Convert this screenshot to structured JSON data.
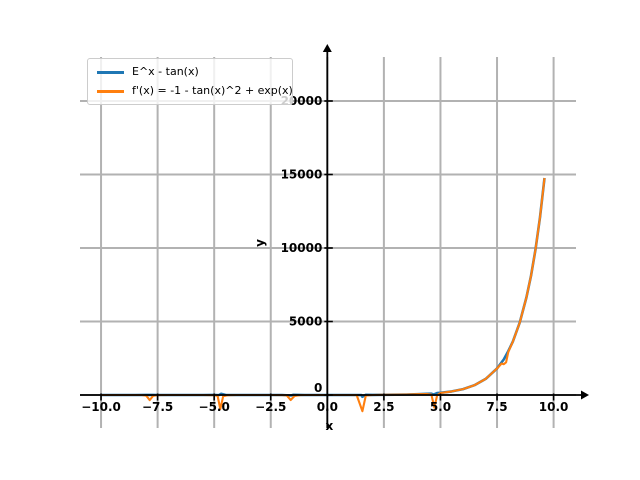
{
  "chart_data": {
    "type": "line",
    "title": "",
    "xlabel": "x",
    "ylabel": "y",
    "xlim": [
      -10.93,
      10.99
    ],
    "ylim": [
      -2245,
      22993
    ],
    "grid": true,
    "grid_color": "#b2b2b2",
    "axis_color": "#000000",
    "tick_label_color": "#000000",
    "legend_position": "upper-left",
    "x_ticks": [
      -10.0,
      -7.5,
      -5.0,
      -2.5,
      0.0,
      2.5,
      5.0,
      7.5,
      10.0
    ],
    "x_tick_labels": [
      "−10.0",
      "−7.5",
      "−5.0",
      "−2.5",
      "0.0",
      "2.5",
      "5.0",
      "7.5",
      "10.0"
    ],
    "y_ticks": [
      0,
      5000,
      10000,
      15000,
      20000
    ],
    "y_tick_labels": [
      "0",
      "5000",
      "10000",
      "15000",
      "20000"
    ],
    "series": [
      {
        "name": "E^x - tan(x)",
        "color": "#1f77b4",
        "points": [
          [
            -10,
            0.6
          ],
          [
            -9.5,
            0.1
          ],
          [
            -9,
            -0.5
          ],
          [
            -8.5,
            -1.4
          ],
          [
            -8,
            6.9
          ],
          [
            -7.7,
            8.0
          ],
          [
            -7.5,
            2.7
          ],
          [
            -7,
            0.9
          ],
          [
            -6.5,
            0.2
          ],
          [
            -6,
            0.3
          ],
          [
            -5.5,
            -1.0
          ],
          [
            -5,
            3.4
          ],
          [
            -4.8,
            -11.4
          ],
          [
            -4.7,
            80.6
          ],
          [
            -4.5,
            4.7
          ],
          [
            -4,
            1.2
          ],
          [
            -3.5,
            -0.3
          ],
          [
            -3,
            0.2
          ],
          [
            -2.5,
            0.8
          ],
          [
            -2,
            2.3
          ],
          [
            -1.6,
            -34.0
          ],
          [
            -1.5,
            14.3
          ],
          [
            -1,
            1.9
          ],
          [
            -0.5,
            1.2
          ],
          [
            0,
            1.0
          ],
          [
            0.5,
            1.1
          ],
          [
            1,
            1.2
          ],
          [
            1.3,
            0.1
          ],
          [
            1.5,
            -9.6
          ],
          [
            1.55,
            -120
          ],
          [
            1.7,
            13.2
          ],
          [
            2,
            9.6
          ],
          [
            2.5,
            12.9
          ],
          [
            3,
            20.2
          ],
          [
            3.5,
            32.7
          ],
          [
            4,
            53.4
          ],
          [
            4.4,
            78.4
          ],
          [
            4.6,
            90.6
          ],
          [
            4.7,
            29.4
          ],
          [
            4.85,
            135
          ],
          [
            5,
            151.8
          ],
          [
            5.5,
            245.7
          ],
          [
            6,
            403.7
          ],
          [
            6.5,
            664.9
          ],
          [
            7,
            1095.7
          ],
          [
            7.5,
            1805.3
          ],
          [
            7.8,
            2422.1
          ],
          [
            8,
            2987.9
          ],
          [
            8.2,
            3646.6
          ],
          [
            8.5,
            4916.1
          ],
          [
            8.8,
            6634.6
          ],
          [
            9,
            8103.5
          ],
          [
            9.2,
            9897.6
          ],
          [
            9.4,
            12088.4
          ],
          [
            9.6,
            14764.9
          ]
        ]
      },
      {
        "name": "f'(x) = -1 - tan(x)^2 + exp(x)",
        "color": "#ff7f0e",
        "points": [
          [
            -10,
            -1.4
          ],
          [
            -9.5,
            -1.0
          ],
          [
            -9,
            -1.2
          ],
          [
            -8.5,
            -1.6
          ],
          [
            -8.2,
            -2.3
          ],
          [
            -8,
            -47.9
          ],
          [
            -7.85,
            -350
          ],
          [
            -7.7,
            -64.5
          ],
          [
            -7.5,
            -8.1
          ],
          [
            -7,
            -1.8
          ],
          [
            -6.5,
            -1.0
          ],
          [
            -6,
            -1.1
          ],
          [
            -5.5,
            -2.0
          ],
          [
            -5,
            -12.4
          ],
          [
            -4.85,
            -60
          ],
          [
            -4.73,
            -950
          ],
          [
            -4.6,
            -79.5
          ],
          [
            -4.4,
            -10.6
          ],
          [
            -4,
            -2.3
          ],
          [
            -3.5,
            -1.1
          ],
          [
            -3,
            -1.0
          ],
          [
            -2.5,
            -1.5
          ],
          [
            -2,
            -5.6
          ],
          [
            -1.8,
            -19.2
          ],
          [
            -1.62,
            -340
          ],
          [
            -1.45,
            -70.3
          ],
          [
            -1.2,
            -7.3
          ],
          [
            -1,
            -3.1
          ],
          [
            -0.5,
            -1.2
          ],
          [
            0,
            0
          ],
          [
            0.5,
            0.4
          ],
          [
            1,
            -0.7
          ],
          [
            1.3,
            -10.3
          ],
          [
            1.55,
            -1100
          ],
          [
            1.7,
            -41.5
          ],
          [
            2,
            1.6
          ],
          [
            2.5,
            10.6
          ],
          [
            3,
            19.1
          ],
          [
            3.5,
            32.0
          ],
          [
            4,
            52.3
          ],
          [
            4.4,
            70.9
          ],
          [
            4.6,
            20.0
          ],
          [
            4.73,
            -850
          ],
          [
            4.85,
            -30
          ],
          [
            5,
            135.4
          ],
          [
            5.5,
            242.7
          ],
          [
            6,
            402.3
          ],
          [
            6.5,
            664.0
          ],
          [
            7,
            1094.8
          ],
          [
            7.5,
            1799.9
          ],
          [
            7.7,
            2143.8
          ],
          [
            7.8,
            2096.6
          ],
          [
            7.9,
            2225.3
          ],
          [
            8,
            2933.7
          ],
          [
            8.2,
            3640.0
          ],
          [
            8.5,
            4912.0
          ],
          [
            8.8,
            6632.7
          ],
          [
            9,
            8101.9
          ],
          [
            9.2,
            9896.0
          ],
          [
            9.4,
            12087.1
          ],
          [
            9.6,
            14763.8
          ]
        ]
      }
    ]
  }
}
